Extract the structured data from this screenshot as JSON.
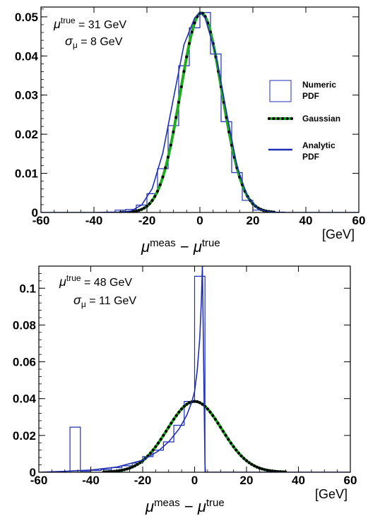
{
  "chart_data": [
    {
      "type": "line",
      "x_unit_label": "[GeV]",
      "xlabel": {
        "main1": "μ",
        "sup1": "meas",
        "minus": " − ",
        "main2": "μ",
        "sup2": "true"
      },
      "xlim": [
        -60,
        60
      ],
      "ylim": [
        0,
        0.0525
      ],
      "x_ticks": [
        -60,
        -40,
        -20,
        0,
        20,
        40,
        60
      ],
      "x_tick_labels": [
        "-60",
        "-40",
        "-20",
        "0",
        "20",
        "40",
        "60"
      ],
      "y_ticks": [
        0,
        0.01,
        0.02,
        0.03,
        0.04,
        0.05
      ],
      "y_tick_labels": [
        "0",
        "0.01",
        "0.02",
        "0.03",
        "0.04",
        "0.05"
      ],
      "annotation": {
        "mu_sym": "μ",
        "mu_sup": "true",
        "mu_val": " = 31 GeV",
        "sigma_sym": "σ",
        "sigma_sub": "μ",
        "sigma_val": " = 8 GeV"
      },
      "legend": {
        "position": "right",
        "numeric": [
          "Numeric",
          "PDF"
        ],
        "gaussian": [
          "Gaussian"
        ],
        "analytic": [
          "Analytic",
          "PDF"
        ]
      },
      "series": [
        {
          "name": "Numeric PDF",
          "kind": "histogram",
          "color": "#1f2fb4",
          "bin_edges": [
            -36,
            -32,
            -28,
            -24,
            -20,
            -16,
            -12,
            -8,
            -4,
            0,
            4,
            8,
            12,
            16,
            20,
            24,
            28,
            32
          ],
          "values": [
            0.0001,
            0.0006,
            0.0008,
            0.0019,
            0.0048,
            0.0112,
            0.0222,
            0.0375,
            0.0472,
            0.0511,
            0.0405,
            0.0232,
            0.0102,
            0.0031,
            0.0006,
            0.0001,
            0.0001
          ]
        },
        {
          "name": "Gaussian",
          "kind": "curve",
          "mean": 0.5,
          "sigma": 7.8,
          "amplitude": 0.051,
          "color": "#22aa22",
          "dot_color": "#000000",
          "x_range": [
            -30,
            28
          ]
        },
        {
          "name": "Analytic PDF",
          "kind": "curve",
          "color": "#1f2fb4",
          "x": [
            -60,
            -40,
            -30,
            -26,
            -22,
            -18,
            -14,
            -10,
            -6,
            -2,
            0,
            2,
            6,
            10,
            14,
            18,
            22,
            26,
            30,
            40,
            60
          ],
          "y": [
            0,
            0,
            0.0001,
            0.0004,
            0.0019,
            0.0061,
            0.0152,
            0.0291,
            0.0429,
            0.0497,
            0.0512,
            0.0497,
            0.0403,
            0.0258,
            0.0118,
            0.0039,
            0.0009,
            0.0002,
            0,
            0,
            0
          ]
        }
      ]
    },
    {
      "type": "line",
      "x_unit_label": "[GeV]",
      "xlabel": {
        "main1": "μ",
        "sup1": "meas",
        "minus": " − ",
        "main2": "μ",
        "sup2": "true"
      },
      "xlim": [
        -60,
        60
      ],
      "ylim": [
        0,
        0.112
      ],
      "x_ticks": [
        -60,
        -40,
        -20,
        0,
        20,
        40,
        60
      ],
      "x_tick_labels": [
        "-60",
        "-40",
        "-20",
        "0",
        "20",
        "40",
        "60"
      ],
      "y_ticks": [
        0,
        0.02,
        0.04,
        0.06,
        0.08,
        0.1
      ],
      "y_tick_labels": [
        "0",
        "0.02",
        "0.04",
        "0.06",
        "0.08",
        "0.1"
      ],
      "annotation": {
        "mu_sym": "μ",
        "mu_sup": "true",
        "mu_val": " = 48 GeV",
        "sigma_sym": "σ",
        "sigma_sub": "μ",
        "sigma_val": " = 11 GeV"
      },
      "series": [
        {
          "name": "Numeric PDF",
          "kind": "histogram",
          "color": "#1f2fb4",
          "bin_edges": [
            -48,
            -44,
            -40,
            -36,
            -32,
            -28,
            -24,
            -20,
            -16,
            -12,
            -8,
            -4,
            0,
            4
          ],
          "values": [
            0.0245,
            0.0005,
            0.001,
            0.0015,
            0.0025,
            0.0035,
            0.005,
            0.0085,
            0.012,
            0.0165,
            0.0255,
            0.0385,
            0.1065
          ]
        },
        {
          "name": "Gaussian",
          "kind": "curve",
          "mean": 0,
          "sigma": 10.5,
          "amplitude": 0.0385,
          "color": "#22aa22",
          "dot_color": "#000000",
          "x_range": [
            -35,
            35
          ]
        },
        {
          "name": "Analytic PDF",
          "kind": "curve",
          "color": "#1f2fb4",
          "x": [
            -60,
            -50,
            -40,
            -30,
            -20,
            -14,
            -10,
            -6,
            -3,
            -1,
            0,
            1,
            2,
            2.6,
            3,
            3.4,
            3.7,
            4,
            4.2,
            60
          ],
          "y": [
            0,
            0.0005,
            0.0012,
            0.0028,
            0.0065,
            0.0115,
            0.0165,
            0.0235,
            0.031,
            0.0385,
            0.044,
            0.055,
            0.073,
            0.093,
            0.112,
            0.07,
            0.035,
            0.004,
            0,
            0
          ]
        }
      ]
    }
  ]
}
